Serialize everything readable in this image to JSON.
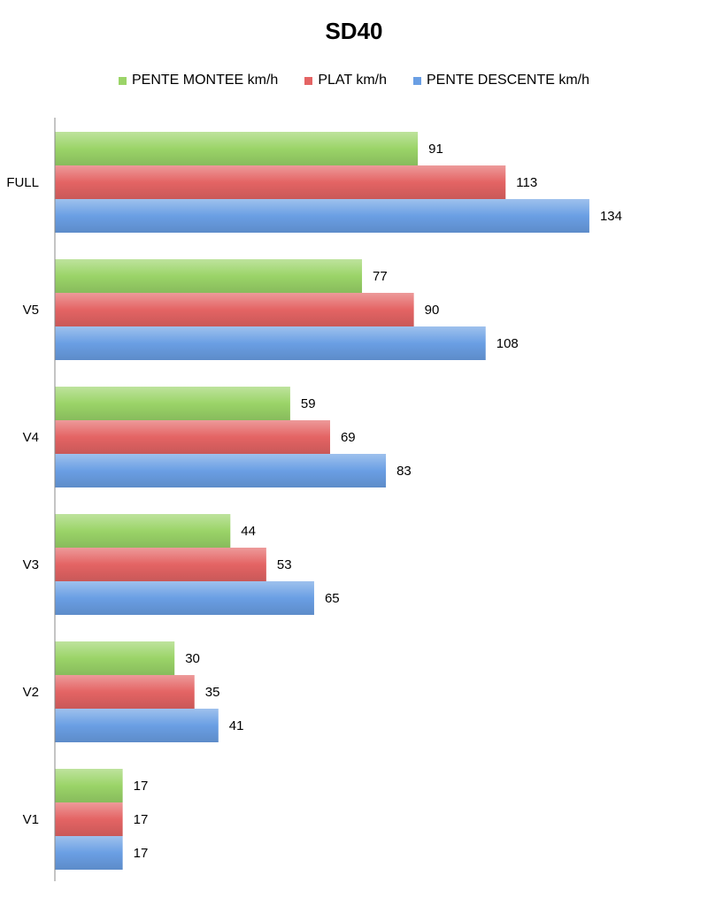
{
  "chart_data": {
    "type": "bar",
    "orientation": "horizontal",
    "title": "SD40",
    "xlabel": "",
    "ylabel": "",
    "categories": [
      "FULL",
      "V5",
      "V4",
      "V3",
      "V2",
      "V1"
    ],
    "series": [
      {
        "name": "PENTE MONTEE km/h",
        "color": "#9bd468",
        "values": [
          91,
          77,
          59,
          44,
          30,
          17
        ]
      },
      {
        "name": "PLAT km/h",
        "color": "#e46464",
        "values": [
          113,
          90,
          69,
          53,
          35,
          17
        ]
      },
      {
        "name": "PENTE DESCENTE km/h",
        "color": "#6a9fe4",
        "values": [
          134,
          108,
          83,
          65,
          41,
          17
        ]
      }
    ],
    "xlim": [
      0,
      150
    ],
    "grid": false,
    "legend_position": "top"
  }
}
